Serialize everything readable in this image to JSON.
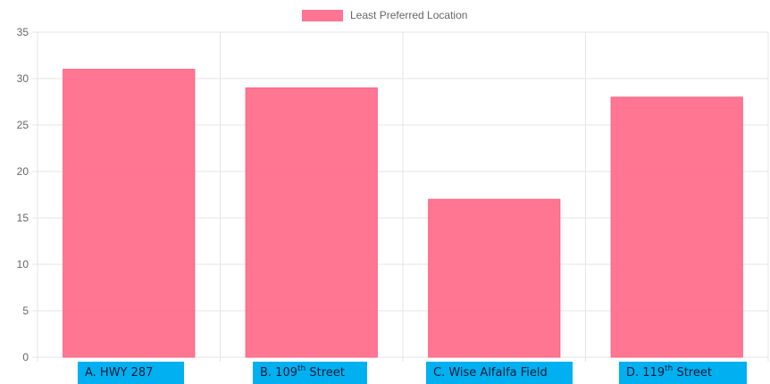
{
  "chart_data": {
    "type": "bar",
    "categories": [
      "A. HWY 287",
      "B. 109th Street",
      "C. Wise Alfalfa Field",
      "D. 119th Street"
    ],
    "series": [
      {
        "name": "Least Preferred Location",
        "values": [
          31,
          29,
          17,
          28
        ],
        "color": "#ff6384"
      }
    ],
    "ylim": [
      0,
      35
    ],
    "yticks": [
      "0",
      "5",
      "10",
      "15",
      "20",
      "25",
      "30",
      "35"
    ],
    "grid": true,
    "legend_position": "top-center",
    "title": "",
    "xlabel": "",
    "ylabel": ""
  },
  "category_labels": [
    {
      "prefix": "A. HWY 287",
      "sup": "",
      "suffix": ""
    },
    {
      "prefix": "B. 109",
      "sup": "th",
      "suffix": " Street"
    },
    {
      "prefix": "C. Wise Alfalfa Field",
      "sup": "",
      "suffix": ""
    },
    {
      "prefix": "D.  119",
      "sup": "th",
      "suffix": " Street"
    }
  ],
  "colors": {
    "bar": "#ff6384",
    "label_box": "#00b0f0",
    "grid": "#e5e5e5",
    "tick_text": "#666666"
  }
}
